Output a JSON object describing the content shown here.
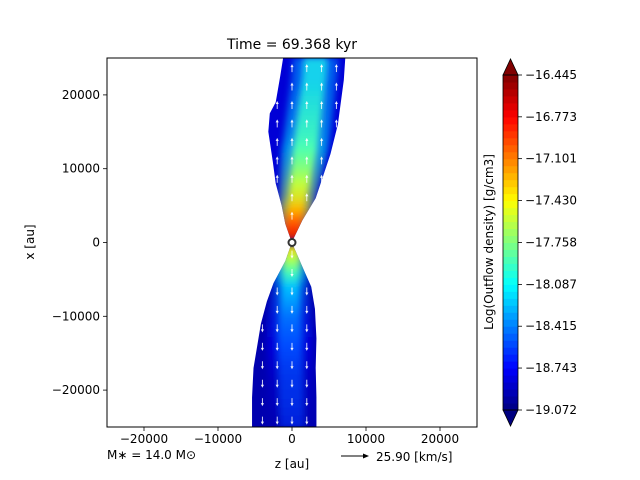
{
  "chart_data": {
    "type": "heatmap",
    "title": "Time = 69.368 kyr",
    "xlabel": "z [au]",
    "ylabel": "x [au]",
    "xlim": [
      -25000,
      25000
    ],
    "ylim": [
      -25000,
      25000
    ],
    "xticks": [
      -20000,
      -10000,
      0,
      10000,
      20000
    ],
    "xtick_labels": [
      "−20000",
      "−10000",
      "0",
      "10000",
      "20000"
    ],
    "yticks": [
      -20000,
      -10000,
      0,
      10000,
      20000
    ],
    "ytick_labels": [
      "−20000",
      "−10000",
      "0",
      "10000",
      "20000"
    ],
    "grid": false,
    "colorbar": {
      "label": "Log(Outflow density) [g/cm3]",
      "min": -19.072,
      "max": -16.445,
      "colormap": "jet",
      "extend": "both",
      "ticks": [
        -16.445,
        -16.773,
        -17.101,
        -17.43,
        -17.758,
        -18.087,
        -18.415,
        -18.743,
        -19.072
      ],
      "tick_labels": [
        "−16.445",
        "−16.773",
        "−17.101",
        "−17.430",
        "−17.758",
        "−18.087",
        "−18.415",
        "−18.743",
        "−19.072"
      ]
    },
    "annotations": {
      "mass_label": "M∗ = 14.0 M⊙",
      "velocity_key": "25.90 [km/s]"
    },
    "outflow_lobes": [
      {
        "name": "upper",
        "outline": [
          [
            -200,
            500
          ],
          [
            -900,
            2500
          ],
          [
            -1400,
            5000
          ],
          [
            -2200,
            8000
          ],
          [
            -2600,
            11000
          ],
          [
            -3200,
            15000
          ],
          [
            -3000,
            17500
          ],
          [
            -2200,
            19000
          ],
          [
            -1600,
            22500
          ],
          [
            -1200,
            25000
          ],
          [
            7200,
            25000
          ],
          [
            7000,
            22000
          ],
          [
            6600,
            19000
          ],
          [
            6200,
            16000
          ],
          [
            5200,
            12000
          ],
          [
            4200,
            9000
          ],
          [
            3200,
            6000
          ],
          [
            1400,
            3000
          ],
          [
            200,
            500
          ]
        ],
        "spine": [
          [
            0,
            500
          ],
          [
            300,
            3000
          ],
          [
            800,
            6000
          ],
          [
            1400,
            10000
          ],
          [
            2000,
            14000
          ],
          [
            2500,
            18000
          ],
          [
            3000,
            22000
          ],
          [
            3200,
            25000
          ]
        ],
        "spine_values": [
          -16.6,
          -16.9,
          -17.3,
          -17.6,
          -17.8,
          -17.9,
          -18.0,
          -18.0
        ],
        "edge_value": -18.85
      },
      {
        "name": "lower",
        "outline": [
          [
            -200,
            -500
          ],
          [
            -900,
            -2500
          ],
          [
            -2500,
            -5500
          ],
          [
            -3400,
            -8000
          ],
          [
            -4200,
            -11000
          ],
          [
            -4700,
            -14000
          ],
          [
            -5200,
            -17000
          ],
          [
            -5400,
            -21000
          ],
          [
            -5400,
            -25000
          ],
          [
            3300,
            -25000
          ],
          [
            3300,
            -21000
          ],
          [
            3200,
            -17000
          ],
          [
            3300,
            -13000
          ],
          [
            3100,
            -9000
          ],
          [
            2600,
            -6000
          ],
          [
            1500,
            -3500
          ],
          [
            200,
            -500
          ]
        ],
        "spine": [
          [
            0,
            -500
          ],
          [
            -100,
            -3000
          ],
          [
            -200,
            -6000
          ],
          [
            -300,
            -10000
          ],
          [
            -300,
            -14000
          ],
          [
            -200,
            -18000
          ],
          [
            -100,
            -22000
          ],
          [
            0,
            -25000
          ]
        ],
        "spine_values": [
          -17.2,
          -17.6,
          -18.1,
          -18.3,
          -18.4,
          -18.5,
          -18.55,
          -18.6
        ],
        "edge_value": -18.95
      }
    ],
    "star_marker": [
      0,
      0
    ]
  }
}
